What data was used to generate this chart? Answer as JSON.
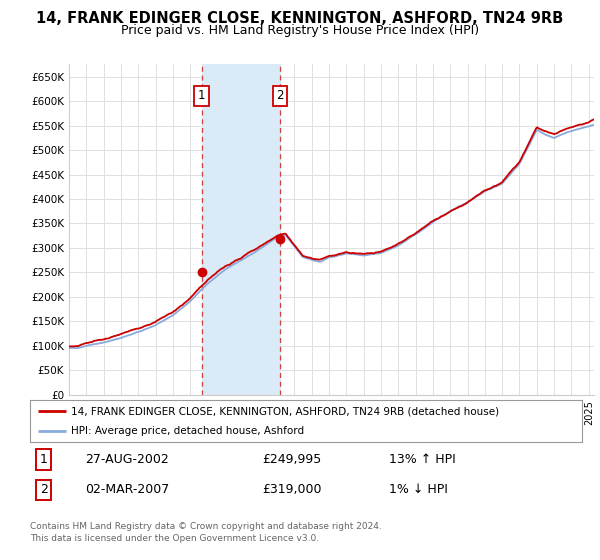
{
  "title": "14, FRANK EDINGER CLOSE, KENNINGTON, ASHFORD, TN24 9RB",
  "subtitle": "Price paid vs. HM Land Registry's House Price Index (HPI)",
  "ylabel_ticks": [
    "£0",
    "£50K",
    "£100K",
    "£150K",
    "£200K",
    "£250K",
    "£300K",
    "£350K",
    "£400K",
    "£450K",
    "£500K",
    "£550K",
    "£600K",
    "£650K"
  ],
  "ylim": [
    0,
    675000
  ],
  "xlim_start": 1995.0,
  "xlim_end": 2025.3,
  "sale1_date": 2002.65,
  "sale2_date": 2007.17,
  "sale1_price": 249995,
  "sale2_price": 319000,
  "background_color": "#ffffff",
  "plot_bg_color": "#ffffff",
  "grid_color": "#e0e0e0",
  "shade_color": "#daeaf7",
  "red_line_color": "#cc0000",
  "blue_line_color": "#88aadd",
  "legend_label1": "14, FRANK EDINGER CLOSE, KENNINGTON, ASHFORD, TN24 9RB (detached house)",
  "legend_label2": "HPI: Average price, detached house, Ashford",
  "table_row1": [
    "1",
    "27-AUG-2002",
    "£249,995",
    "13% ↑ HPI"
  ],
  "table_row2": [
    "2",
    "02-MAR-2007",
    "£319,000",
    "1% ↓ HPI"
  ],
  "footnote": "Contains HM Land Registry data © Crown copyright and database right 2024.\nThis data is licensed under the Open Government Licence v3.0.",
  "title_fontsize": 10.5,
  "subtitle_fontsize": 9
}
